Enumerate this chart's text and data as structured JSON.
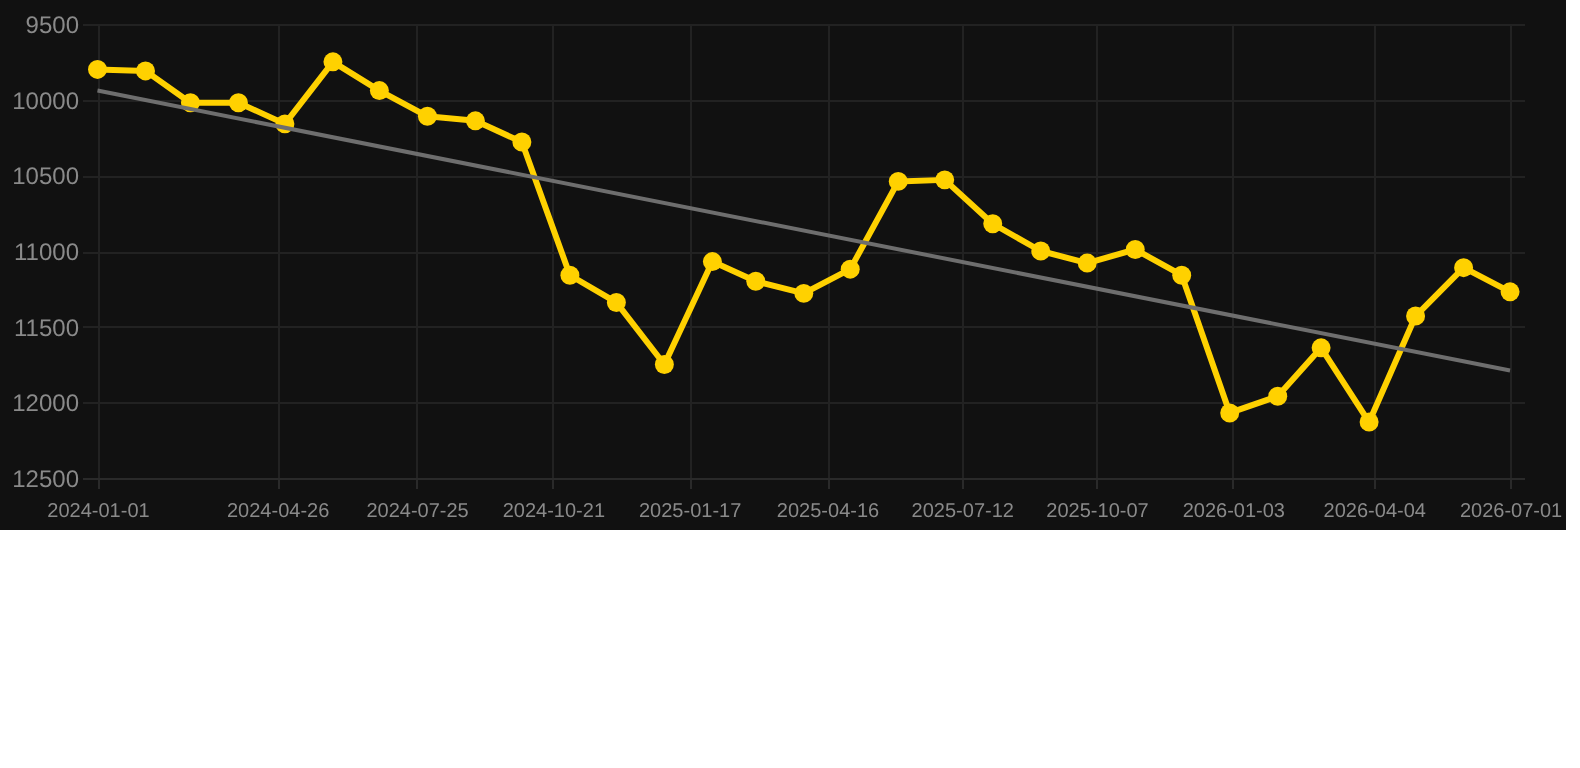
{
  "chart_data": {
    "type": "line",
    "x": [
      "2024-01-01",
      "2024-02-01",
      "2024-03-01",
      "2024-04-01",
      "2024-05-01",
      "2024-06-01",
      "2024-07-01",
      "2024-08-01",
      "2024-09-01",
      "2024-10-01",
      "2024-11-01",
      "2024-12-01",
      "2025-01-01",
      "2025-02-01",
      "2025-03-01",
      "2025-04-01",
      "2025-05-01",
      "2025-06-01",
      "2025-07-01",
      "2025-08-01",
      "2025-09-01",
      "2025-10-01",
      "2025-11-01",
      "2025-12-01",
      "2026-01-01",
      "2026-02-01",
      "2026-03-01",
      "2026-04-01",
      "2026-05-01",
      "2026-06-01",
      "2026-07-01"
    ],
    "series": [
      {
        "color": "#ffd100",
        "marker": "circle",
        "values": [
          9800,
          9810,
          10020,
          10020,
          10160,
          9750,
          9940,
          10110,
          10140,
          10280,
          11160,
          11340,
          11750,
          11070,
          11200,
          11280,
          11120,
          10540,
          10530,
          10820,
          11000,
          11080,
          10990,
          11160,
          12070,
          11960,
          11640,
          12130,
          11430,
          11110,
          11270
        ]
      },
      {
        "color": "#6e6e6e",
        "marker": "none",
        "x": [
          "2024-01-01",
          "2026-07-01"
        ],
        "values": [
          9940,
          11790
        ]
      }
    ],
    "ylim": [
      12500,
      9500
    ],
    "yticks": [
      9500,
      10000,
      10500,
      11000,
      11500,
      12000,
      12500
    ],
    "xlim": [
      "2023-12-22",
      "2026-07-10"
    ],
    "xticks": [
      {
        "value": "2024-01-01",
        "label": "2024-01-01"
      },
      {
        "value": "2024-04-26",
        "label": "2024-04-26"
      },
      {
        "value": "2024-07-25",
        "label": "2024-07-25"
      },
      {
        "value": "2024-10-21",
        "label": "2024-10-21"
      },
      {
        "value": "2025-01-17",
        "label": "2025-01-17"
      },
      {
        "value": "2025-04-16",
        "label": "2025-04-16"
      },
      {
        "value": "2025-07-12",
        "label": "2025-07-12"
      },
      {
        "value": "2025-10-07",
        "label": "2025-10-07"
      },
      {
        "value": "2026-01-03",
        "label": "2026-01-03"
      },
      {
        "value": "2026-04-04",
        "label": "2026-04-04"
      },
      {
        "value": "2026-07-01",
        "label": "2026-07-01"
      }
    ],
    "grid": true
  }
}
